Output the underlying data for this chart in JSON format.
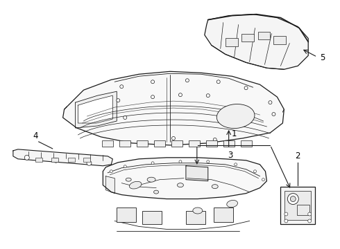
{
  "background_color": "#ffffff",
  "line_color": "#1a1a1a",
  "fig_width": 4.9,
  "fig_height": 3.6,
  "dpi": 100,
  "label_fontsize": 8.5,
  "parts": {
    "floor_panel_label": "3",
    "rear_panel_label": "1",
    "side_bar_label": "4",
    "shelf_label": "5",
    "bracket_label": "2"
  }
}
